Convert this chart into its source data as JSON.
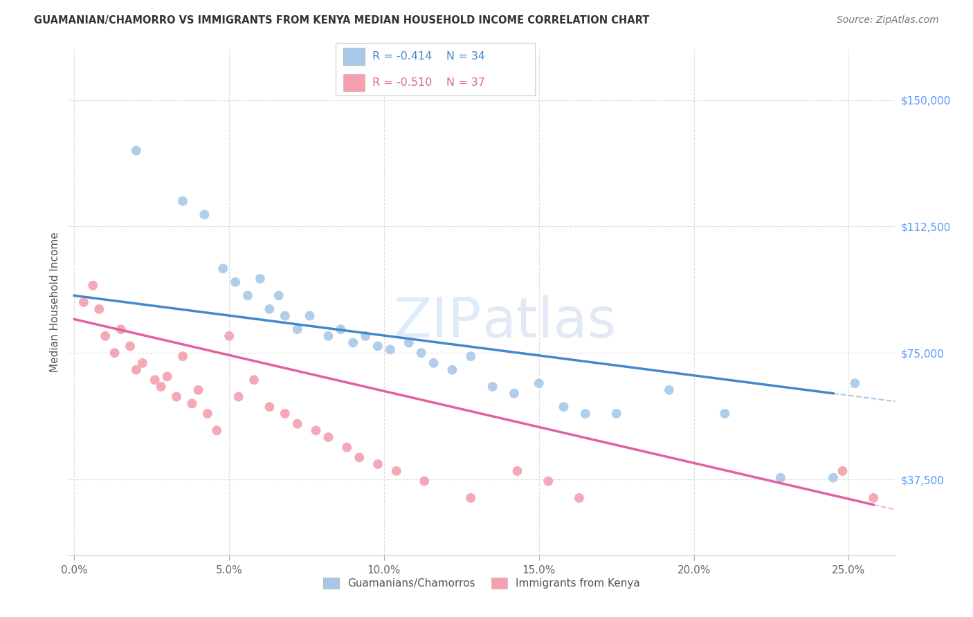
{
  "title": "GUAMANIAN/CHAMORRO VS IMMIGRANTS FROM KENYA MEDIAN HOUSEHOLD INCOME CORRELATION CHART",
  "source": "Source: ZipAtlas.com",
  "ylabel": "Median Household Income",
  "xlabel_ticks": [
    "0.0%",
    "5.0%",
    "10.0%",
    "15.0%",
    "20.0%",
    "25.0%"
  ],
  "xlabel_vals": [
    0.0,
    0.05,
    0.1,
    0.15,
    0.2,
    0.25
  ],
  "ytick_labels": [
    "$37,500",
    "$75,000",
    "$112,500",
    "$150,000"
  ],
  "ytick_vals": [
    37500,
    75000,
    112500,
    150000
  ],
  "ylim": [
    15000,
    165000
  ],
  "xlim": [
    -0.002,
    0.265
  ],
  "watermark_zip": "ZIP",
  "watermark_atlas": "atlas",
  "legend_blue_R": "R = -0.414",
  "legend_blue_N": "N = 34",
  "legend_pink_R": "R = -0.510",
  "legend_pink_N": "N = 37",
  "legend_label_blue": "Guamanians/Chamorros",
  "legend_label_pink": "Immigrants from Kenya",
  "blue_color": "#a8c8e8",
  "pink_color": "#f4a0b0",
  "blue_line_color": "#4488cc",
  "pink_line_color": "#e060a0",
  "bg_color": "#ffffff",
  "grid_color": "#dddddd",
  "right_axis_color": "#5599ff",
  "title_color": "#333333",
  "source_color": "#777777",
  "ylabel_color": "#555555",
  "blue_scatter_x": [
    0.02,
    0.035,
    0.042,
    0.048,
    0.052,
    0.056,
    0.06,
    0.063,
    0.066,
    0.068,
    0.072,
    0.076,
    0.082,
    0.086,
    0.09,
    0.094,
    0.098,
    0.102,
    0.108,
    0.112,
    0.116,
    0.122,
    0.128,
    0.135,
    0.142,
    0.15,
    0.158,
    0.165,
    0.175,
    0.192,
    0.21,
    0.228,
    0.245,
    0.252
  ],
  "blue_scatter_y": [
    135000,
    120000,
    116000,
    100000,
    96000,
    92000,
    97000,
    88000,
    92000,
    86000,
    82000,
    86000,
    80000,
    82000,
    78000,
    80000,
    77000,
    76000,
    78000,
    75000,
    72000,
    70000,
    74000,
    65000,
    63000,
    66000,
    59000,
    57000,
    57000,
    64000,
    57000,
    38000,
    38000,
    66000
  ],
  "pink_scatter_x": [
    0.003,
    0.006,
    0.008,
    0.01,
    0.013,
    0.015,
    0.018,
    0.02,
    0.022,
    0.026,
    0.028,
    0.03,
    0.033,
    0.035,
    0.038,
    0.04,
    0.043,
    0.046,
    0.05,
    0.053,
    0.058,
    0.063,
    0.068,
    0.072,
    0.078,
    0.082,
    0.088,
    0.092,
    0.098,
    0.104,
    0.113,
    0.128,
    0.143,
    0.153,
    0.163,
    0.248,
    0.258
  ],
  "pink_scatter_y": [
    90000,
    95000,
    88000,
    80000,
    75000,
    82000,
    77000,
    70000,
    72000,
    67000,
    65000,
    68000,
    62000,
    74000,
    60000,
    64000,
    57000,
    52000,
    80000,
    62000,
    67000,
    59000,
    57000,
    54000,
    52000,
    50000,
    47000,
    44000,
    42000,
    40000,
    37000,
    32000,
    40000,
    37000,
    32000,
    40000,
    32000
  ],
  "blue_line_x0": 0.0,
  "blue_line_y0": 92000,
  "blue_line_x1": 0.245,
  "blue_line_y1": 63000,
  "pink_line_x0": 0.0,
  "pink_line_y0": 85000,
  "pink_line_x1": 0.258,
  "pink_line_y1": 30000
}
